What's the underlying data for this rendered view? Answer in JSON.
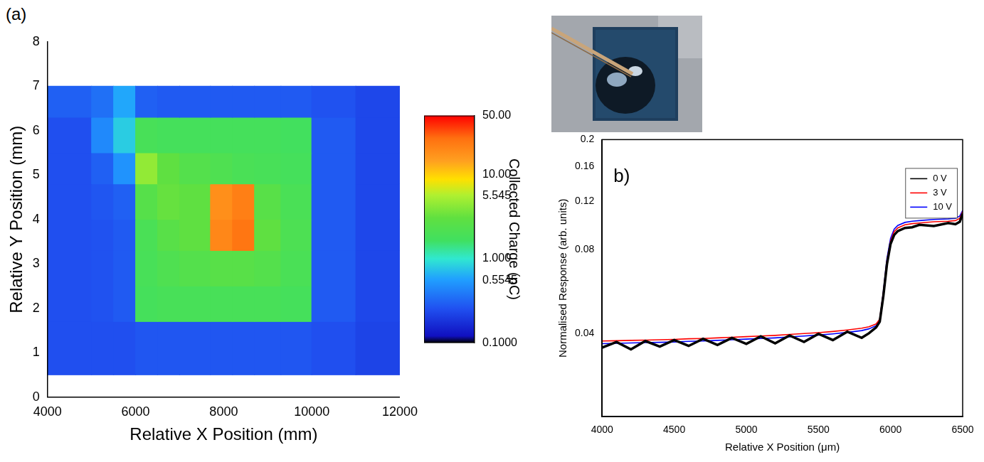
{
  "chart_data": [
    {
      "type": "heatmap",
      "title": "(a)",
      "x_label": "Relative X Position (mm)",
      "y_label": "Relative Y Position (mm)",
      "xlim": [
        4000,
        12000
      ],
      "xticks": [
        4000,
        6000,
        8000,
        10000,
        12000
      ],
      "ylim": [
        0,
        8
      ],
      "yticks": [
        0,
        1,
        2,
        3,
        4,
        5,
        6,
        7,
        8
      ],
      "grid": false,
      "x_edges": [
        4000,
        5000,
        5500,
        6000,
        6500,
        7000,
        7700,
        8200,
        8700,
        9300,
        10000,
        11000,
        12000
      ],
      "y_edges": [
        0.5,
        1.7,
        2.5,
        3.3,
        4.0,
        4.8,
        5.5,
        6.3,
        7.0
      ],
      "cells": [
        [
          0.25,
          0.25,
          0.25,
          0.27,
          0.27,
          0.27,
          0.27,
          0.27,
          0.27,
          0.27,
          0.25,
          0.22
        ],
        [
          0.25,
          0.26,
          0.28,
          1.8,
          1.9,
          1.9,
          1.9,
          1.9,
          1.9,
          1.8,
          0.28,
          0.23
        ],
        [
          0.25,
          0.26,
          0.28,
          1.9,
          2.2,
          2.4,
          2.6,
          2.6,
          2.4,
          2.0,
          0.28,
          0.23
        ],
        [
          0.25,
          0.26,
          0.28,
          2.0,
          2.6,
          3.0,
          20,
          25,
          3.0,
          2.1,
          0.28,
          0.23
        ],
        [
          0.25,
          0.27,
          0.3,
          2.5,
          3.2,
          3.0,
          18,
          22,
          2.6,
          2.0,
          0.28,
          0.23
        ],
        [
          0.25,
          0.3,
          0.5,
          4.5,
          3.0,
          2.4,
          2.2,
          2.0,
          1.9,
          1.8,
          0.28,
          0.23
        ],
        [
          0.25,
          0.45,
          0.8,
          1.9,
          1.8,
          1.8,
          1.8,
          1.8,
          1.8,
          1.7,
          0.28,
          0.23
        ],
        [
          0.3,
          0.35,
          0.6,
          0.3,
          0.28,
          0.28,
          0.28,
          0.28,
          0.28,
          0.28,
          0.26,
          0.23
        ]
      ],
      "colorbar": {
        "label": "Collected Charge (pC)",
        "log": true,
        "range": [
          0.1,
          50
        ],
        "ticks": [
          {
            "value": 0.1,
            "label": "0.1000"
          },
          {
            "value": 0.5545,
            "label": "0.5545"
          },
          {
            "value": 1,
            "label": "1.000"
          },
          {
            "value": 5.545,
            "label": "5.545"
          },
          {
            "value": 10,
            "label": "10.00"
          },
          {
            "value": 50,
            "label": "50.00"
          }
        ]
      }
    },
    {
      "type": "line",
      "title": "b)",
      "x_label": "Relative X Position (μm)",
      "y_label": "Normalised Response (arb. units)",
      "xlim": [
        4000,
        6500
      ],
      "xticks": [
        4000,
        4500,
        5000,
        5500,
        6000,
        6500
      ],
      "ylim": [
        0.02,
        0.2
      ],
      "yticks": [
        0.04,
        0.08,
        0.12,
        0.16,
        0.2
      ],
      "log": "y",
      "grid": false,
      "legend": "upper right",
      "x": [
        4000,
        4100,
        4200,
        4300,
        4400,
        4500,
        4600,
        4700,
        4800,
        4900,
        5000,
        5100,
        5200,
        5300,
        5400,
        5500,
        5600,
        5700,
        5800,
        5850,
        5900,
        5925,
        5950,
        5975,
        6000,
        6025,
        6050,
        6100,
        6150,
        6200,
        6300,
        6400,
        6450,
        6480,
        6500
      ],
      "series": [
        {
          "name": "0 V",
          "color": "#000000",
          "values": [
            0.0355,
            0.0372,
            0.035,
            0.0375,
            0.0358,
            0.0378,
            0.036,
            0.0382,
            0.0363,
            0.0385,
            0.0366,
            0.039,
            0.0368,
            0.0393,
            0.0372,
            0.0398,
            0.0378,
            0.0405,
            0.0385,
            0.04,
            0.042,
            0.044,
            0.0545,
            0.071,
            0.084,
            0.0905,
            0.0935,
            0.096,
            0.0965,
            0.0985,
            0.0975,
            0.1,
            0.099,
            0.101,
            0.108
          ]
        },
        {
          "name": "3 V",
          "color": "#ff0000",
          "values": [
            0.0375,
            0.0376,
            0.0377,
            0.0378,
            0.0379,
            0.038,
            0.0382,
            0.0383,
            0.0385,
            0.0387,
            0.0389,
            0.0391,
            0.0393,
            0.0396,
            0.0399,
            0.0402,
            0.0406,
            0.0411,
            0.0417,
            0.0422,
            0.0432,
            0.045,
            0.056,
            0.073,
            0.086,
            0.093,
            0.096,
            0.0985,
            0.0995,
            0.1,
            0.101,
            0.1015,
            0.102,
            0.104,
            0.11
          ]
        },
        {
          "name": "10 V",
          "color": "#0000ff",
          "values": [
            0.0367,
            0.0368,
            0.0369,
            0.037,
            0.0371,
            0.0372,
            0.0374,
            0.0375,
            0.0377,
            0.0379,
            0.0381,
            0.0383,
            0.0385,
            0.0388,
            0.0391,
            0.0394,
            0.0398,
            0.0403,
            0.0409,
            0.0415,
            0.0426,
            0.0448,
            0.0565,
            0.0745,
            0.088,
            0.095,
            0.098,
            0.1005,
            0.1015,
            0.102,
            0.103,
            0.1035,
            0.104,
            0.106,
            0.111
          ]
        }
      ]
    }
  ]
}
